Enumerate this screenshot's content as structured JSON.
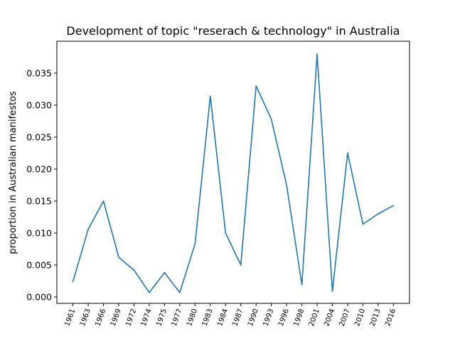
{
  "chart_data": {
    "type": "line",
    "title": "Development of topic \"reserach & technology\" in Australia",
    "xlabel": "",
    "ylabel": "proportion in Australian manifestos",
    "categories": [
      "1961",
      "1963",
      "1966",
      "1969",
      "1972",
      "1974",
      "1975",
      "1977",
      "1980",
      "1983",
      "1984",
      "1987",
      "1990",
      "1993",
      "1996",
      "1998",
      "2001",
      "2004",
      "2007",
      "2010",
      "2013",
      "2016"
    ],
    "series": [
      {
        "color": "#1f77b4",
        "values": [
          0.0024,
          0.0106,
          0.015,
          0.0062,
          0.0042,
          0.0007,
          0.0038,
          0.0007,
          0.0083,
          0.0314,
          0.01,
          0.005,
          0.033,
          0.0278,
          0.0175,
          0.0019,
          0.038,
          0.0009,
          0.0225,
          0.0114,
          0.013,
          0.0143
        ]
      }
    ],
    "ylim": [
      -0.001,
      0.04
    ],
    "yticks": [
      "0.000",
      "0.005",
      "0.010",
      "0.015",
      "0.020",
      "0.025",
      "0.030",
      "0.035"
    ],
    "grid": false,
    "legend": "none"
  }
}
